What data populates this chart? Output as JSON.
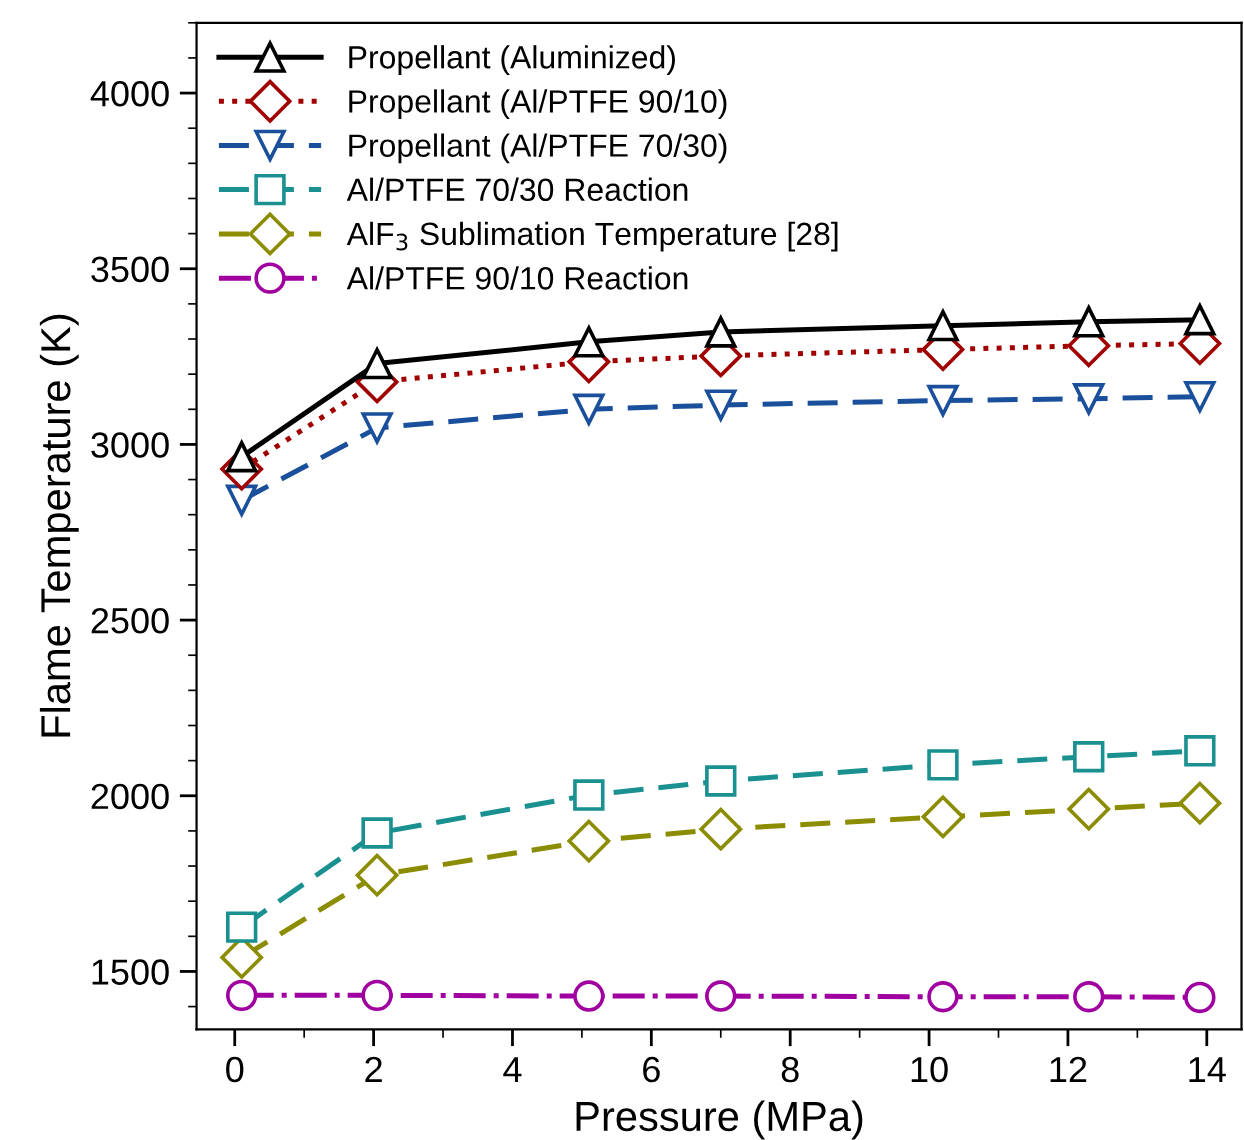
{
  "chart_data": {
    "type": "line",
    "xlabel": "Pressure (MPa)",
    "ylabel": "Flame Temperature (K)",
    "x": [
      0.1,
      2.05,
      5.1,
      7.0,
      10.2,
      12.3,
      13.9
    ],
    "xlim": [
      -0.55,
      14.5
    ],
    "xticks": [
      0,
      2,
      4,
      6,
      8,
      10,
      12,
      14
    ],
    "ylim": [
      1335,
      4200
    ],
    "yticks": [
      1500,
      2000,
      2500,
      3000,
      3500,
      4000
    ],
    "grid": false,
    "legend": "top left",
    "series": [
      {
        "name": "Propellant (Aluminized)",
        "color": "#000000",
        "marker": "triangle",
        "line_style": "solid",
        "values": [
          2965,
          3230,
          3292,
          3320,
          3338,
          3349,
          3355
        ]
      },
      {
        "name": "Propellant (Al/PTFE 90/10)",
        "color": "#a00000",
        "marker": "diamond",
        "line_style": "dotted",
        "values": [
          2930,
          3178,
          3235,
          3252,
          3270,
          3281,
          3287
        ]
      },
      {
        "name": "Propellant (Al/PTFE 70/30)",
        "color": "#1a4f9c",
        "marker": "triangle_down",
        "line_style": "dashed",
        "values": [
          2841,
          3047,
          3100,
          3112,
          3125,
          3130,
          3136
        ]
      },
      {
        "name": "Al/PTFE 70/30 Reaction",
        "color": "#1a9090",
        "marker": "square",
        "line_style": "dashed",
        "values": [
          1626,
          1894,
          2002,
          2042,
          2088,
          2111,
          2128
        ]
      },
      {
        "name": "AlF$_{3}$ Sublimation Temperature [28]",
        "color": "#8c8c00",
        "marker": "diamond",
        "line_style": "dashed",
        "values": [
          1540,
          1774,
          1871,
          1905,
          1940,
          1962,
          1979
        ]
      },
      {
        "name": "Al/PTFE 90/10 Reaction",
        "color": "#a000a0",
        "marker": "circle",
        "line_style": "dashdot",
        "values": [
          1432,
          1432,
          1430,
          1430,
          1428,
          1428,
          1426
        ]
      }
    ]
  }
}
